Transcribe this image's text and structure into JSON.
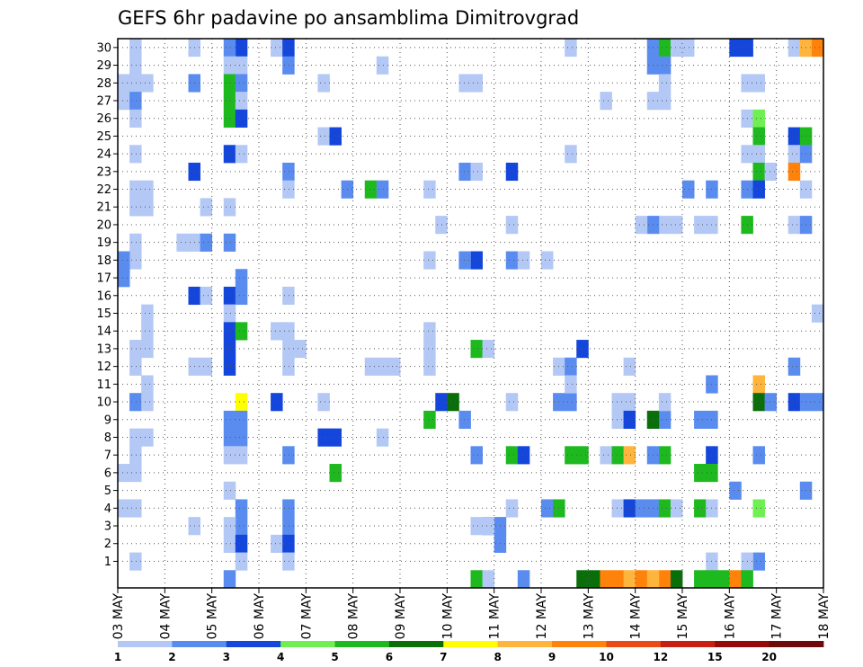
{
  "chart_data": {
    "type": "heatmap",
    "title": "GEFS 6hr padavine po ansamblima Dimitrovgrad",
    "xlabel": "",
    "ylabel": "",
    "members": [
      0,
      1,
      2,
      3,
      4,
      5,
      6,
      7,
      8,
      9,
      10,
      11,
      12,
      13,
      14,
      15,
      16,
      17,
      18,
      19,
      20,
      21,
      22,
      23,
      24,
      25,
      26,
      27,
      28,
      29,
      30
    ],
    "y_tick_labels": [
      "1",
      "2",
      "3",
      "4",
      "5",
      "6",
      "7",
      "8",
      "9",
      "10",
      "11",
      "12",
      "13",
      "14",
      "15",
      "16",
      "17",
      "18",
      "19",
      "20",
      "21",
      "22",
      "23",
      "24",
      "25",
      "26",
      "27",
      "28",
      "29",
      "30"
    ],
    "x_tick_labels": [
      "03 MAY",
      "04 MAY",
      "05 MAY",
      "06 MAY",
      "07 MAY",
      "08 MAY",
      "09 MAY",
      "10 MAY",
      "11 MAY",
      "12 MAY",
      "13 MAY",
      "14 MAY",
      "15 MAY",
      "16 MAY",
      "17 MAY",
      "18 MAY"
    ],
    "time_steps_per_day": 4,
    "time_steps_total": 60,
    "grid": true,
    "legend": {
      "placement": "bottom",
      "labels": [
        "1",
        "2",
        "3",
        "4",
        "5",
        "6",
        "7",
        "8",
        "9",
        "10",
        "12",
        "15",
        "20"
      ],
      "colors": [
        "#b4c8f5",
        "#5a8cf0",
        "#1446dc",
        "#6ef052",
        "#1eb91e",
        "#0a6e0a",
        "#ffff00",
        "#ffb43c",
        "#ff820a",
        "#eb4b14",
        "#c81e14",
        "#960a0a",
        "#6e0a0a"
      ]
    },
    "cells": [
      [
        1,
        30,
        1
      ],
      [
        1,
        29,
        1
      ],
      [
        0,
        28,
        1
      ],
      [
        1,
        28,
        1
      ],
      [
        2,
        28,
        1
      ],
      [
        0,
        27,
        1
      ],
      [
        1,
        27,
        2
      ],
      [
        1,
        26,
        1
      ],
      [
        1,
        24,
        1
      ],
      [
        1,
        22,
        1
      ],
      [
        2,
        22,
        1
      ],
      [
        1,
        21,
        1
      ],
      [
        2,
        21,
        1
      ],
      [
        1,
        19,
        1
      ],
      [
        1,
        18,
        1
      ],
      [
        0,
        18,
        2
      ],
      [
        0,
        17,
        2
      ],
      [
        2,
        15,
        1
      ],
      [
        2,
        14,
        1
      ],
      [
        1,
        13,
        1
      ],
      [
        2,
        13,
        1
      ],
      [
        1,
        12,
        1
      ],
      [
        2,
        11,
        1
      ],
      [
        1,
        10,
        2
      ],
      [
        2,
        10,
        1
      ],
      [
        1,
        8,
        1
      ],
      [
        2,
        8,
        1
      ],
      [
        1,
        7,
        1
      ],
      [
        0,
        6,
        1
      ],
      [
        1,
        6,
        1
      ],
      [
        0,
        4,
        1
      ],
      [
        1,
        4,
        1
      ],
      [
        1,
        1,
        1
      ],
      [
        6,
        30,
        1
      ],
      [
        6,
        28,
        2
      ],
      [
        6,
        23,
        3
      ],
      [
        7,
        21,
        1
      ],
      [
        5,
        19,
        1
      ],
      [
        6,
        19,
        1
      ],
      [
        7,
        19,
        2
      ],
      [
        6,
        16,
        3
      ],
      [
        7,
        16,
        1
      ],
      [
        6,
        12,
        1
      ],
      [
        7,
        12,
        1
      ],
      [
        6,
        3,
        1
      ],
      [
        10,
        30,
        3
      ],
      [
        9,
        30,
        2
      ],
      [
        9,
        29,
        1
      ],
      [
        10,
        29,
        1
      ],
      [
        9,
        28,
        5
      ],
      [
        10,
        28,
        2
      ],
      [
        9,
        27,
        5
      ],
      [
        10,
        27,
        1
      ],
      [
        9,
        26,
        5
      ],
      [
        10,
        26,
        3
      ],
      [
        9,
        24,
        3
      ],
      [
        10,
        24,
        1
      ],
      [
        9,
        21,
        1
      ],
      [
        9,
        19,
        2
      ],
      [
        10,
        17,
        2
      ],
      [
        9,
        16,
        3
      ],
      [
        10,
        16,
        2
      ],
      [
        9,
        15,
        1
      ],
      [
        9,
        14,
        3
      ],
      [
        10,
        14,
        5
      ],
      [
        9,
        13,
        3
      ],
      [
        9,
        12,
        3
      ],
      [
        10,
        10,
        7
      ],
      [
        9,
        9,
        2
      ],
      [
        10,
        9,
        2
      ],
      [
        9,
        8,
        2
      ],
      [
        10,
        8,
        2
      ],
      [
        9,
        7,
        1
      ],
      [
        10,
        7,
        1
      ],
      [
        9,
        5,
        1
      ],
      [
        10,
        4,
        2
      ],
      [
        10,
        3,
        2
      ],
      [
        9,
        3,
        1
      ],
      [
        9,
        2,
        1
      ],
      [
        10,
        2,
        3
      ],
      [
        10,
        1,
        1
      ],
      [
        9,
        0,
        2
      ],
      [
        13,
        30,
        1
      ],
      [
        14,
        30,
        3
      ],
      [
        14,
        29,
        2
      ],
      [
        14,
        23,
        2
      ],
      [
        14,
        22,
        1
      ],
      [
        14,
        16,
        1
      ],
      [
        13,
        14,
        1
      ],
      [
        14,
        14,
        1
      ],
      [
        14,
        13,
        1
      ],
      [
        15,
        13,
        1
      ],
      [
        14,
        12,
        1
      ],
      [
        13,
        10,
        3
      ],
      [
        14,
        7,
        2
      ],
      [
        14,
        4,
        2
      ],
      [
        13,
        2,
        1
      ],
      [
        14,
        3,
        2
      ],
      [
        14,
        2,
        3
      ],
      [
        14,
        1,
        1
      ],
      [
        17,
        28,
        1
      ],
      [
        17,
        25,
        1
      ],
      [
        18,
        25,
        3
      ],
      [
        19,
        22,
        2
      ],
      [
        17,
        10,
        1
      ],
      [
        17,
        8,
        3
      ],
      [
        18,
        8,
        3
      ],
      [
        18,
        6,
        5
      ],
      [
        22,
        29,
        1
      ],
      [
        21,
        22,
        5
      ],
      [
        22,
        22,
        2
      ],
      [
        21,
        12,
        1
      ],
      [
        22,
        12,
        1
      ],
      [
        23,
        12,
        1
      ],
      [
        22,
        8,
        1
      ],
      [
        26,
        22,
        1
      ],
      [
        26,
        18,
        1
      ],
      [
        27,
        20,
        1
      ],
      [
        26,
        14,
        1
      ],
      [
        26,
        13,
        1
      ],
      [
        26,
        12,
        1
      ],
      [
        27,
        10,
        3
      ],
      [
        28,
        10,
        6
      ],
      [
        26,
        9,
        5
      ],
      [
        29,
        9,
        2
      ],
      [
        29,
        28,
        1
      ],
      [
        30,
        28,
        1
      ],
      [
        29,
        23,
        2
      ],
      [
        30,
        23,
        1
      ],
      [
        30,
        18,
        3
      ],
      [
        29,
        18,
        2
      ],
      [
        30,
        13,
        5
      ],
      [
        31,
        13,
        1
      ],
      [
        30,
        7,
        2
      ],
      [
        32,
        3,
        1
      ],
      [
        31,
        3,
        2
      ],
      [
        30,
        3,
        1
      ],
      [
        32,
        3,
        2
      ],
      [
        31,
        3,
        1
      ],
      [
        32,
        2,
        2
      ],
      [
        30,
        0,
        5
      ],
      [
        31,
        0,
        1
      ],
      [
        33,
        23,
        3
      ],
      [
        33,
        20,
        1
      ],
      [
        33,
        18,
        2
      ],
      [
        34,
        18,
        1
      ],
      [
        33,
        10,
        1
      ],
      [
        33,
        7,
        5
      ],
      [
        34,
        7,
        3
      ],
      [
        33,
        4,
        1
      ],
      [
        34,
        0,
        2
      ],
      [
        36,
        18,
        1
      ],
      [
        38,
        24,
        1
      ],
      [
        37,
        12,
        1
      ],
      [
        38,
        12,
        2
      ],
      [
        37,
        10,
        2
      ],
      [
        38,
        10,
        2
      ],
      [
        38,
        11,
        1
      ],
      [
        36,
        4,
        2
      ],
      [
        37,
        4,
        5
      ],
      [
        38,
        7,
        5
      ],
      [
        39,
        7,
        5
      ],
      [
        39,
        13,
        3
      ],
      [
        40,
        0,
        6
      ],
      [
        39,
        0,
        6
      ],
      [
        41,
        0,
        9
      ],
      [
        38,
        30,
        1
      ],
      [
        41,
        7,
        1
      ],
      [
        42,
        7,
        5
      ],
      [
        43,
        7,
        8
      ],
      [
        42,
        10,
        1
      ],
      [
        43,
        10,
        1
      ],
      [
        42,
        9,
        1
      ],
      [
        43,
        9,
        3
      ],
      [
        43,
        12,
        1
      ],
      [
        41,
        27,
        1
      ],
      [
        42,
        0,
        9
      ],
      [
        43,
        0,
        8
      ],
      [
        44,
        0,
        9
      ],
      [
        42,
        4,
        1
      ],
      [
        43,
        4,
        3
      ],
      [
        44,
        4,
        2
      ],
      [
        45,
        30,
        2
      ],
      [
        46,
        30,
        5
      ],
      [
        46,
        29,
        2
      ],
      [
        45,
        29,
        2
      ],
      [
        46,
        28,
        1
      ],
      [
        45,
        27,
        1
      ],
      [
        46,
        27,
        1
      ],
      [
        46,
        20,
        1
      ],
      [
        45,
        20,
        2
      ],
      [
        44,
        20,
        1
      ],
      [
        46,
        9,
        2
      ],
      [
        45,
        9,
        6
      ],
      [
        45,
        4,
        2
      ],
      [
        46,
        4,
        5
      ],
      [
        47,
        4,
        1
      ],
      [
        46,
        7,
        5
      ],
      [
        45,
        7,
        2
      ],
      [
        46,
        10,
        1
      ],
      [
        47,
        20,
        1
      ],
      [
        46,
        0,
        9
      ],
      [
        45,
        0,
        8
      ],
      [
        47,
        0,
        6
      ],
      [
        47,
        30,
        1
      ],
      [
        48,
        30,
        1
      ],
      [
        48,
        22,
        2
      ],
      [
        50,
        22,
        2
      ],
      [
        49,
        20,
        1
      ],
      [
        50,
        20,
        1
      ],
      [
        50,
        11,
        2
      ],
      [
        49,
        9,
        2
      ],
      [
        50,
        9,
        2
      ],
      [
        50,
        7,
        3
      ],
      [
        49,
        6,
        5
      ],
      [
        50,
        6,
        5
      ],
      [
        49,
        4,
        5
      ],
      [
        50,
        4,
        1
      ],
      [
        50,
        1,
        1
      ],
      [
        50,
        0,
        5
      ],
      [
        49,
        0,
        5
      ],
      [
        51,
        0,
        5
      ],
      [
        52,
        30,
        3
      ],
      [
        53,
        30,
        3
      ],
      [
        53,
        28,
        1
      ],
      [
        54,
        28,
        1
      ],
      [
        53,
        26,
        1
      ],
      [
        54,
        26,
        4
      ],
      [
        54,
        25,
        5
      ],
      [
        53,
        24,
        1
      ],
      [
        54,
        24,
        1
      ],
      [
        54,
        23,
        5
      ],
      [
        55,
        23,
        1
      ],
      [
        53,
        22,
        2
      ],
      [
        54,
        22,
        3
      ],
      [
        53,
        20,
        5
      ],
      [
        54,
        11,
        8
      ],
      [
        54,
        10,
        6
      ],
      [
        55,
        10,
        2
      ],
      [
        52,
        5,
        2
      ],
      [
        54,
        7,
        2
      ],
      [
        54,
        4,
        4
      ],
      [
        54,
        1,
        2
      ],
      [
        53,
        1,
        1
      ],
      [
        52,
        0,
        9
      ],
      [
        53,
        0,
        5
      ],
      [
        57,
        30,
        1
      ],
      [
        58,
        30,
        8
      ],
      [
        59,
        30,
        9
      ],
      [
        57,
        25,
        3
      ],
      [
        58,
        25,
        5
      ],
      [
        57,
        24,
        1
      ],
      [
        58,
        24,
        2
      ],
      [
        57,
        23,
        9
      ],
      [
        58,
        22,
        1
      ],
      [
        57,
        20,
        1
      ],
      [
        58,
        20,
        2
      ],
      [
        59,
        15,
        1
      ],
      [
        57,
        12,
        2
      ],
      [
        57,
        10,
        3
      ],
      [
        58,
        10,
        2
      ],
      [
        59,
        10,
        2
      ],
      [
        58,
        5,
        2
      ]
    ]
  }
}
